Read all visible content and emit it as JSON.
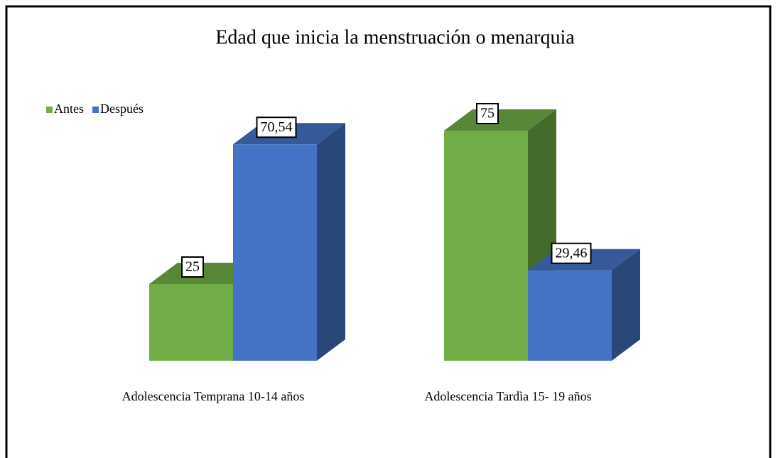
{
  "chart_data": {
    "type": "bar3d",
    "title": "Edad que inicia la menstruación o menarquia",
    "categories": [
      "Adolescencia Temprana 10-14 años",
      "Adolescencia Tardìa 15- 19 años"
    ],
    "series": [
      {
        "name": "Antes",
        "color": "#70ad47",
        "values": [
          25,
          75
        ],
        "value_labels": [
          "25",
          "75"
        ]
      },
      {
        "name": "Después",
        "color": "#4472c4",
        "values": [
          70.54,
          29.46
        ],
        "value_labels": [
          "70,54",
          "29,46"
        ]
      }
    ],
    "legend": "top-left"
  }
}
